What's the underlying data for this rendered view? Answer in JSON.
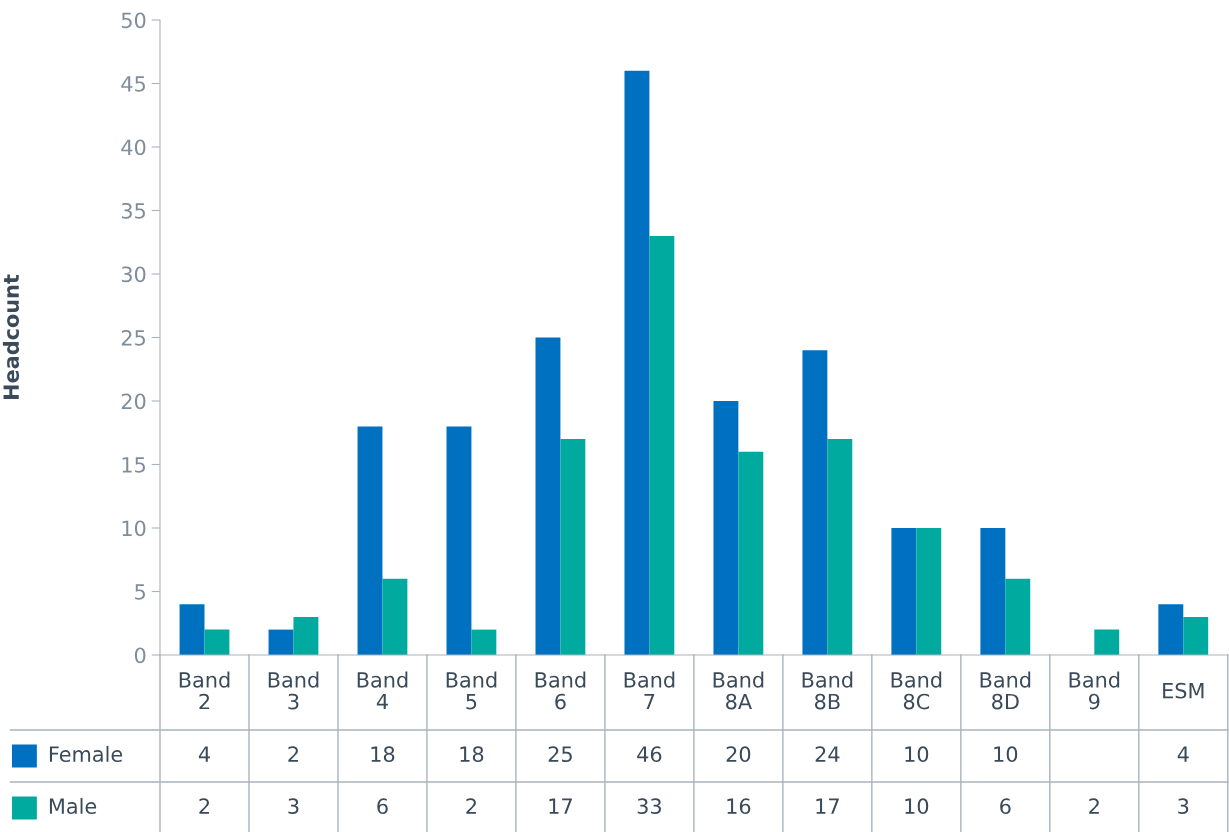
{
  "chart_data": {
    "type": "bar",
    "ylabel": "Headcount",
    "categories": [
      "Band 2",
      "Band 3",
      "Band 4",
      "Band 5",
      "Band 6",
      "Band 7",
      "Band 8A",
      "Band 8B",
      "Band 8C",
      "Band 8D",
      "Band 9",
      "ESM"
    ],
    "series": [
      {
        "name": "Female",
        "color": "#0070c0",
        "values": [
          4,
          2,
          18,
          18,
          25,
          46,
          20,
          24,
          10,
          10,
          null,
          4
        ]
      },
      {
        "name": "Male",
        "color": "#00aa9e",
        "values": [
          2,
          3,
          6,
          2,
          17,
          33,
          16,
          17,
          10,
          6,
          2,
          3
        ]
      }
    ],
    "ylim": [
      0,
      50
    ],
    "yticks": [
      0,
      5,
      10,
      15,
      20,
      25,
      30,
      35,
      40,
      45,
      50
    ],
    "data_labels": true,
    "legend": "bottom left",
    "grid": false
  }
}
